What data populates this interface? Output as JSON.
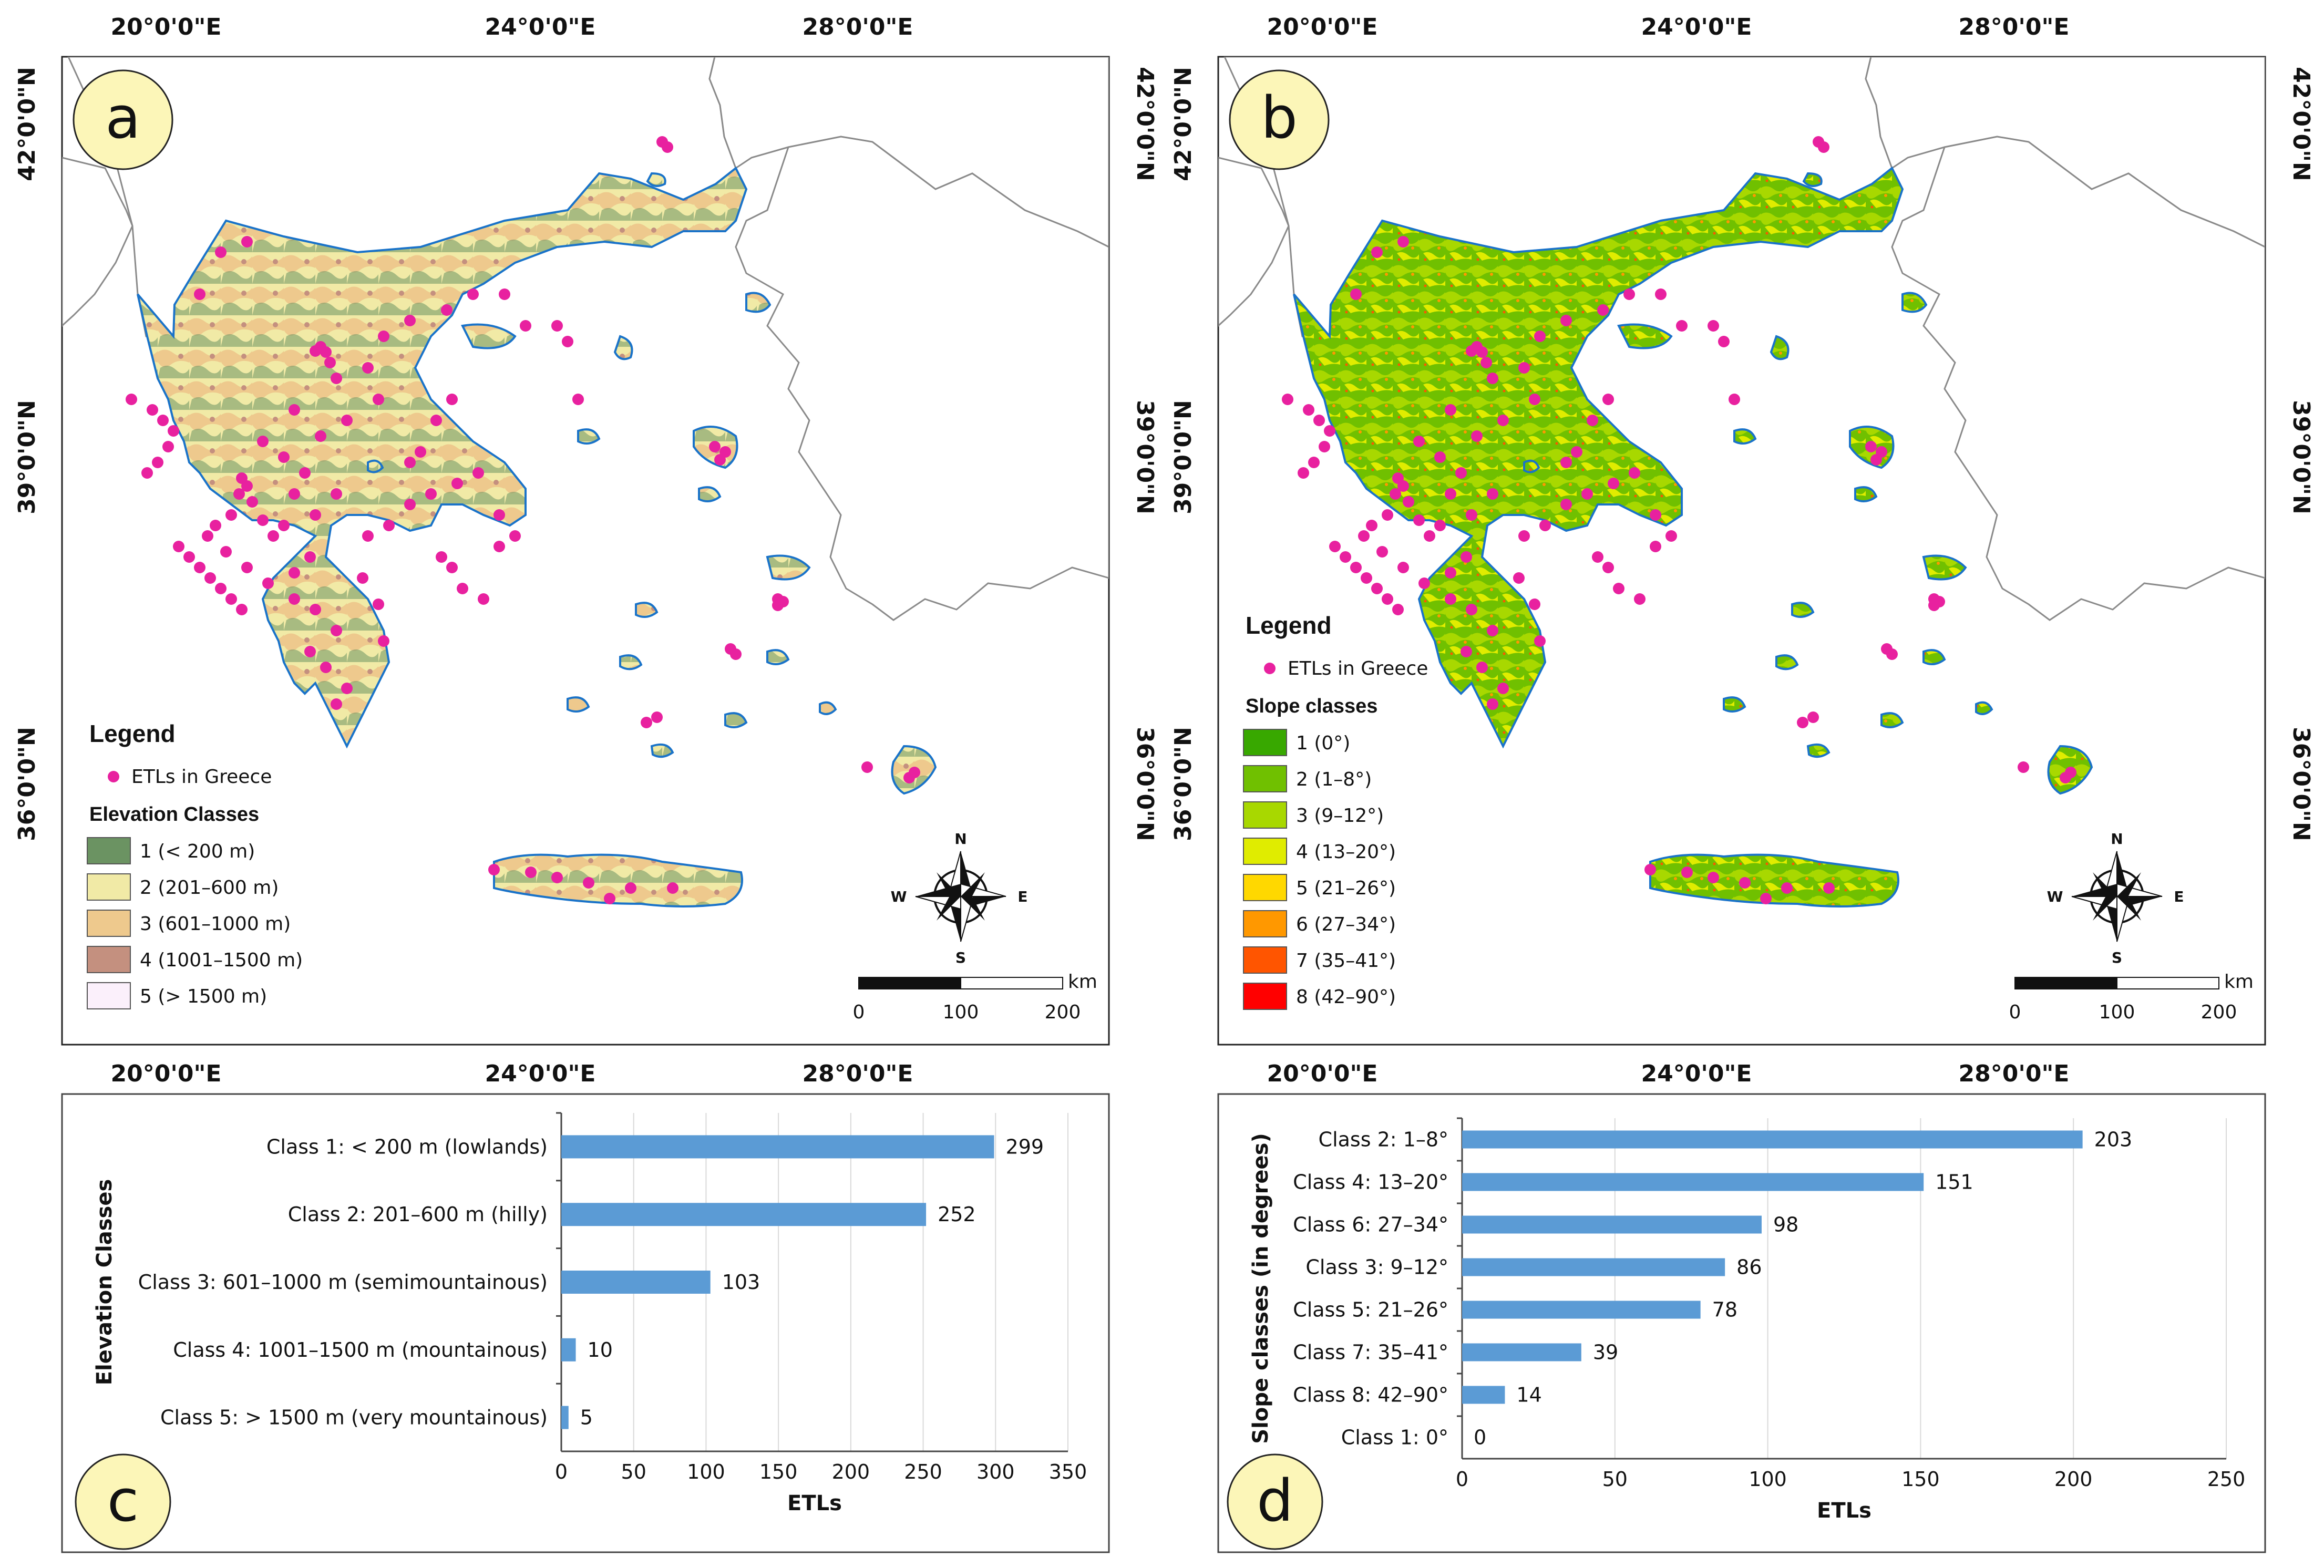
{
  "maps": {
    "coords": {
      "lon_top": [
        "20°0'0\"E",
        "24°0'0\"E",
        "28°0'0\"E"
      ],
      "lon_bottom": [
        "20°0'0\"E",
        "24°0'0\"E",
        "28°0'0\"E"
      ],
      "lat": [
        "42°0'0\"N",
        "39°0'0\"N",
        "36°0'0\"N"
      ]
    },
    "a": {
      "letter": "a",
      "legend_title": "Legend",
      "points_label": "ETLs in Greece",
      "classes_title": "Elevation Classes",
      "classes": [
        {
          "label": "1 (< 200 m)",
          "color": "#6b9362"
        },
        {
          "label": "2 (201–600 m)",
          "color": "#f1eaa6"
        },
        {
          "label": "3 (601–1000 m)",
          "color": "#eec98d"
        },
        {
          "label": "4 (1001–1500 m)",
          "color": "#c4907f"
        },
        {
          "label": "5 (> 1500 m)",
          "color": "#fbf0fb"
        }
      ]
    },
    "b": {
      "letter": "b",
      "legend_title": "Legend",
      "points_label": "ETLs in Greece",
      "classes_title": "Slope classes",
      "classes": [
        {
          "label": "1 (0°)",
          "color": "#38a800"
        },
        {
          "label": "2 (1–8°)",
          "color": "#70c000"
        },
        {
          "label": "3 (9–12°)",
          "color": "#a8d800"
        },
        {
          "label": "4 (13–20°)",
          "color": "#e0ec00"
        },
        {
          "label": "5 (21–26°)",
          "color": "#ffd800"
        },
        {
          "label": "6 (27–34°)",
          "color": "#ff9800"
        },
        {
          "label": "7 (35–41°)",
          "color": "#ff5500"
        },
        {
          "label": "8 (42–90°)",
          "color": "#ff0000"
        }
      ]
    },
    "compass": {
      "n": "N",
      "e": "E",
      "s": "S",
      "w": "W"
    },
    "scale": {
      "unit": "km",
      "labels": [
        "0",
        "100",
        "200"
      ]
    },
    "colors": {
      "point": "#e8219f",
      "coast": "#1a73c9",
      "border": "#8a8a8a"
    }
  },
  "chart_data": [
    {
      "type": "bar",
      "panel": "c",
      "orientation": "horizontal",
      "categories": [
        "Class 1: < 200 m (lowlands)",
        "Class 2: 201–600 m (hilly)",
        "Class 3: 601–1000 m (semimountainous)",
        "Class 4: 1001–1500 m (mountainous)",
        "Class 5: > 1500 m (very mountainous)"
      ],
      "values": [
        299,
        252,
        103,
        10,
        5
      ],
      "value_labels": [
        "299",
        "252",
        "103",
        "10",
        "5"
      ],
      "xlabel": "ETLs",
      "ylabel": "Elevation Classes",
      "xlim": [
        0,
        350
      ],
      "ticks": [
        "0",
        "50",
        "100",
        "150",
        "200",
        "250",
        "300",
        "350"
      ],
      "color": "#5b9bd5"
    },
    {
      "type": "bar",
      "panel": "d",
      "orientation": "horizontal",
      "categories": [
        "Class 2: 1–8°",
        "Class 4: 13–20°",
        "Class 6: 27–34°",
        "Class 3: 9–12°",
        "Class 5: 21–26°",
        "Class 7: 35–41°",
        "Class 8: 42–90°",
        "Class 1: 0°"
      ],
      "values": [
        203,
        151,
        98,
        86,
        78,
        39,
        14,
        0
      ],
      "value_labels": [
        "203",
        "151",
        "98",
        "86",
        "78",
        "39",
        "14",
        "0"
      ],
      "xlabel": "ETLs",
      "ylabel": "Slope classes (in degrees)",
      "xlim": [
        0,
        250
      ],
      "ticks": [
        "0",
        "50",
        "100",
        "150",
        "200",
        "250"
      ],
      "color": "#5b9bd5"
    }
  ]
}
